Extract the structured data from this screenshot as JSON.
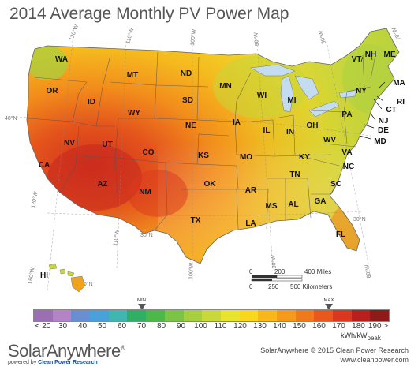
{
  "title": "2014 Average Monthly PV Power Map",
  "states": [
    "WA",
    "OR",
    "ID",
    "MT",
    "ND",
    "SD",
    "WY",
    "NE",
    "NV",
    "UT",
    "CO",
    "CA",
    "AZ",
    "NM",
    "KS",
    "OK",
    "TX",
    "MN",
    "IA",
    "MO",
    "AR",
    "LA",
    "WI",
    "IL",
    "MS",
    "MI",
    "IN",
    "KY",
    "TN",
    "AL",
    "OH",
    "WV",
    "GA",
    "FL",
    "PA",
    "VA",
    "NC",
    "SC",
    "NY",
    "VT",
    "NH",
    "ME",
    "MA",
    "RI",
    "CT",
    "NJ",
    "DE",
    "MD",
    "HI"
  ],
  "graticule": {
    "lon": [
      "120°W",
      "110°W",
      "100°W",
      "90°W",
      "80°W",
      "70°W",
      "160°W"
    ],
    "lat": [
      "40°N",
      "30°N",
      "30°N",
      "20°N"
    ]
  },
  "scale_bar": {
    "miles": [
      "0",
      "200",
      "400 Miles"
    ],
    "km": [
      "0",
      "250",
      "500 Kilometers"
    ]
  },
  "legend": {
    "ticks": [
      "< 20",
      "30",
      "40",
      "50",
      "60",
      "70",
      "80",
      "90",
      "100",
      "110",
      "120",
      "130",
      "140",
      "150",
      "160",
      "170",
      "180",
      "190 >"
    ],
    "units": "kWh/kW",
    "units_sub": "peak",
    "min_label": "MIN",
    "max_label": "MAX",
    "min_value": 70,
    "max_value": 165,
    "colors": [
      "#9b6fb2",
      "#b584c6",
      "#6a8fd0",
      "#4aa0d8",
      "#3fb6b2",
      "#2fae64",
      "#4cb84a",
      "#7cc443",
      "#a5cf3f",
      "#c8d83a",
      "#e8e32f",
      "#f7d81f",
      "#f8b81c",
      "#f59a1a",
      "#f07a1a",
      "#e8581c",
      "#d9381e",
      "#b8201e",
      "#8e1a1a"
    ]
  },
  "brand": {
    "name": "SolarAnywhere",
    "registered": "®",
    "powered_by": "powered by",
    "company": "Clean Power Research"
  },
  "credit": {
    "line1": "SolarAnywhere © 2015 Clean Power Research",
    "line2": "www.cleanpower.com"
  }
}
